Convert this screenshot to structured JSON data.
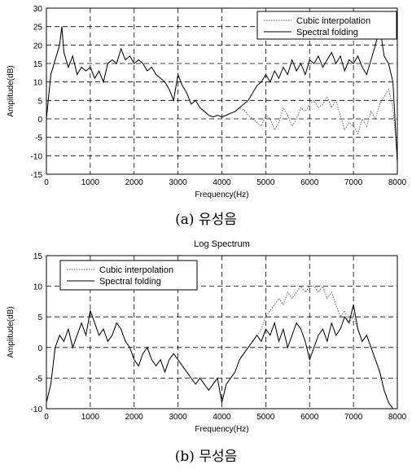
{
  "chart_data": [
    {
      "type": "line",
      "title": "",
      "caption": "(a) 유성음",
      "xlabel": "Frequency(Hz)",
      "ylabel": "Amplitude(dB)",
      "xlim": [
        0,
        8000
      ],
      "ylim": [
        -15,
        30
      ],
      "xticks": [
        0,
        1000,
        2000,
        3000,
        4000,
        5000,
        6000,
        7000,
        8000
      ],
      "yticks": [
        -15,
        -10,
        -5,
        0,
        5,
        10,
        15,
        20,
        25,
        30
      ],
      "grid": true,
      "legend_position": "top-right",
      "series": [
        {
          "name": "Cubic interpolation",
          "style": "dotted",
          "x": [
            0,
            100,
            200,
            300,
            350,
            400,
            500,
            600,
            700,
            800,
            900,
            1000,
            1100,
            1200,
            1300,
            1400,
            1500,
            1600,
            1700,
            1800,
            1900,
            2000,
            2100,
            2200,
            2300,
            2400,
            2500,
            2600,
            2700,
            2800,
            2900,
            3000,
            3100,
            3200,
            3300,
            3400,
            3500,
            3600,
            3700,
            3800,
            3900,
            4000,
            4100,
            4200,
            4300,
            4400,
            4500,
            4600,
            4700,
            4800,
            4900,
            5000,
            5100,
            5200,
            5300,
            5400,
            5500,
            5600,
            5700,
            5800,
            5900,
            6000,
            6100,
            6200,
            6300,
            6400,
            6500,
            6600,
            6700,
            6800,
            6900,
            7000,
            7100,
            7200,
            7300,
            7400,
            7500,
            7600,
            7700,
            7800,
            7900,
            8000
          ],
          "y": [
            0,
            12,
            16,
            20,
            25,
            18,
            14,
            17,
            12,
            14,
            13,
            14,
            11,
            13,
            10,
            15,
            16,
            15,
            19,
            16,
            17,
            15,
            16,
            15,
            13,
            14,
            12,
            11,
            10,
            8,
            5,
            12,
            9,
            7,
            4,
            5,
            3,
            2,
            1,
            0.5,
            1,
            0.5,
            1,
            1.5,
            2,
            3,
            2.5,
            1,
            0,
            -1,
            -2,
            1,
            0,
            -3,
            -1,
            3,
            1,
            -2,
            0,
            3,
            2,
            4,
            5,
            3,
            4,
            6,
            3,
            5,
            1,
            -3,
            -1,
            -2,
            -4,
            0,
            -2,
            2,
            0,
            4,
            6,
            8,
            3,
            -10
          ]
        },
        {
          "name": "Spectral folding",
          "style": "solid",
          "x": [
            0,
            100,
            200,
            300,
            350,
            400,
            500,
            600,
            700,
            800,
            900,
            1000,
            1100,
            1200,
            1300,
            1400,
            1500,
            1600,
            1700,
            1800,
            1900,
            2000,
            2100,
            2200,
            2300,
            2400,
            2500,
            2600,
            2700,
            2800,
            2900,
            3000,
            3100,
            3200,
            3300,
            3400,
            3500,
            3600,
            3700,
            3800,
            3900,
            4000,
            4100,
            4200,
            4300,
            4400,
            4500,
            4600,
            4700,
            4800,
            4900,
            5000,
            5100,
            5200,
            5300,
            5400,
            5500,
            5600,
            5700,
            5800,
            5900,
            6000,
            6100,
            6200,
            6300,
            6400,
            6500,
            6600,
            6700,
            6800,
            6900,
            7000,
            7100,
            7200,
            7300,
            7400,
            7500,
            7600,
            7700,
            7800,
            7900,
            8000
          ],
          "y": [
            0,
            12,
            16,
            20,
            25,
            18,
            14,
            17,
            12,
            14,
            13,
            14,
            11,
            13,
            10,
            15,
            16,
            15,
            19,
            16,
            17,
            15,
            16,
            15,
            13,
            14,
            12,
            11,
            10,
            8,
            5,
            12,
            9,
            7,
            4,
            5,
            3,
            2,
            1,
            0.5,
            1,
            0.5,
            1,
            1.5,
            2,
            3,
            4,
            5,
            7,
            9,
            10,
            12,
            10,
            13,
            11,
            14,
            12,
            16,
            13,
            15,
            12,
            16,
            15,
            17,
            14,
            16,
            18,
            15,
            17,
            13,
            16,
            15,
            17,
            14,
            12,
            16,
            20,
            25,
            17,
            15,
            10,
            -12
          ]
        }
      ]
    },
    {
      "type": "line",
      "title": "Log Spectrum",
      "caption": "(b) 무성음",
      "xlabel": "Frequency(Hz)",
      "ylabel": "Amplitude(dB)",
      "xlim": [
        0,
        8000
      ],
      "ylim": [
        -10,
        15
      ],
      "xticks": [
        0,
        1000,
        2000,
        3000,
        4000,
        5000,
        6000,
        7000,
        8000
      ],
      "yticks": [
        -10,
        -5,
        0,
        5,
        10,
        15
      ],
      "grid": true,
      "legend_position": "top-left",
      "series": [
        {
          "name": "Cubic interpolation",
          "style": "dotted",
          "x": [
            0,
            100,
            200,
            300,
            400,
            500,
            600,
            700,
            800,
            900,
            1000,
            1100,
            1200,
            1300,
            1400,
            1500,
            1600,
            1700,
            1800,
            1900,
            2000,
            2100,
            2200,
            2300,
            2400,
            2500,
            2600,
            2700,
            2800,
            2900,
            3000,
            3100,
            3200,
            3300,
            3400,
            3500,
            3600,
            3700,
            3800,
            3900,
            4000,
            4100,
            4200,
            4300,
            4400,
            4500,
            4600,
            4700,
            4800,
            4900,
            5000,
            5100,
            5200,
            5300,
            5400,
            5500,
            5600,
            5700,
            5800,
            5900,
            6000,
            6100,
            6200,
            6300,
            6400,
            6500,
            6600,
            6700,
            6800,
            6900,
            7000,
            7100,
            7200,
            7300,
            7400,
            7500,
            7600,
            7700,
            7800,
            7900
          ],
          "y": [
            -9,
            -6,
            0,
            2,
            1,
            3,
            0,
            2,
            4,
            2,
            6,
            4,
            2,
            3,
            1,
            2,
            4,
            3,
            1,
            0,
            -2,
            -3,
            -1,
            0,
            -2,
            -3,
            -2,
            -4,
            -2,
            -1,
            -2,
            -3,
            -4,
            -5,
            -6,
            -5,
            -6,
            -7,
            -6,
            -5,
            -9,
            -6,
            -5,
            -4,
            -2,
            -1,
            0,
            1,
            2,
            3,
            5,
            6,
            7,
            8,
            7,
            9,
            8,
            9,
            10,
            9,
            10,
            10,
            9,
            10,
            8,
            9,
            7,
            5,
            6,
            4,
            5,
            3,
            1,
            2,
            0,
            -2,
            -4,
            -7,
            -9,
            -10
          ]
        },
        {
          "name": "Spectral folding",
          "style": "solid",
          "x": [
            0,
            100,
            200,
            300,
            400,
            500,
            600,
            700,
            800,
            900,
            1000,
            1100,
            1200,
            1300,
            1400,
            1500,
            1600,
            1700,
            1800,
            1900,
            2000,
            2100,
            2200,
            2300,
            2400,
            2500,
            2600,
            2700,
            2800,
            2900,
            3000,
            3100,
            3200,
            3300,
            3400,
            3500,
            3600,
            3700,
            3800,
            3900,
            4000,
            4100,
            4200,
            4300,
            4400,
            4500,
            4600,
            4700,
            4800,
            4900,
            5000,
            5100,
            5200,
            5300,
            5400,
            5500,
            5600,
            5700,
            5800,
            5900,
            6000,
            6100,
            6200,
            6300,
            6400,
            6500,
            6600,
            6700,
            6800,
            6900,
            7000,
            7100,
            7200,
            7300,
            7400,
            7500,
            7600,
            7700,
            7800,
            7900
          ],
          "y": [
            -9,
            -6,
            0,
            2,
            1,
            3,
            0,
            2,
            4,
            2,
            6,
            4,
            2,
            3,
            1,
            2,
            4,
            3,
            1,
            0,
            -2,
            -3,
            -1,
            0,
            -2,
            -3,
            -2,
            -4,
            -2,
            -1,
            -2,
            -3,
            -4,
            -5,
            -6,
            -5,
            -6,
            -7,
            -6,
            -5,
            -9,
            -6,
            -5,
            -4,
            -2,
            -1,
            0,
            1,
            2,
            1,
            3,
            2,
            4,
            1,
            3,
            0,
            2,
            4,
            3,
            1,
            -2,
            0,
            2,
            3,
            1,
            4,
            2,
            3,
            5,
            4,
            7,
            3,
            1,
            2,
            0,
            -2,
            -4,
            -7,
            -9,
            -10
          ]
        }
      ]
    }
  ]
}
